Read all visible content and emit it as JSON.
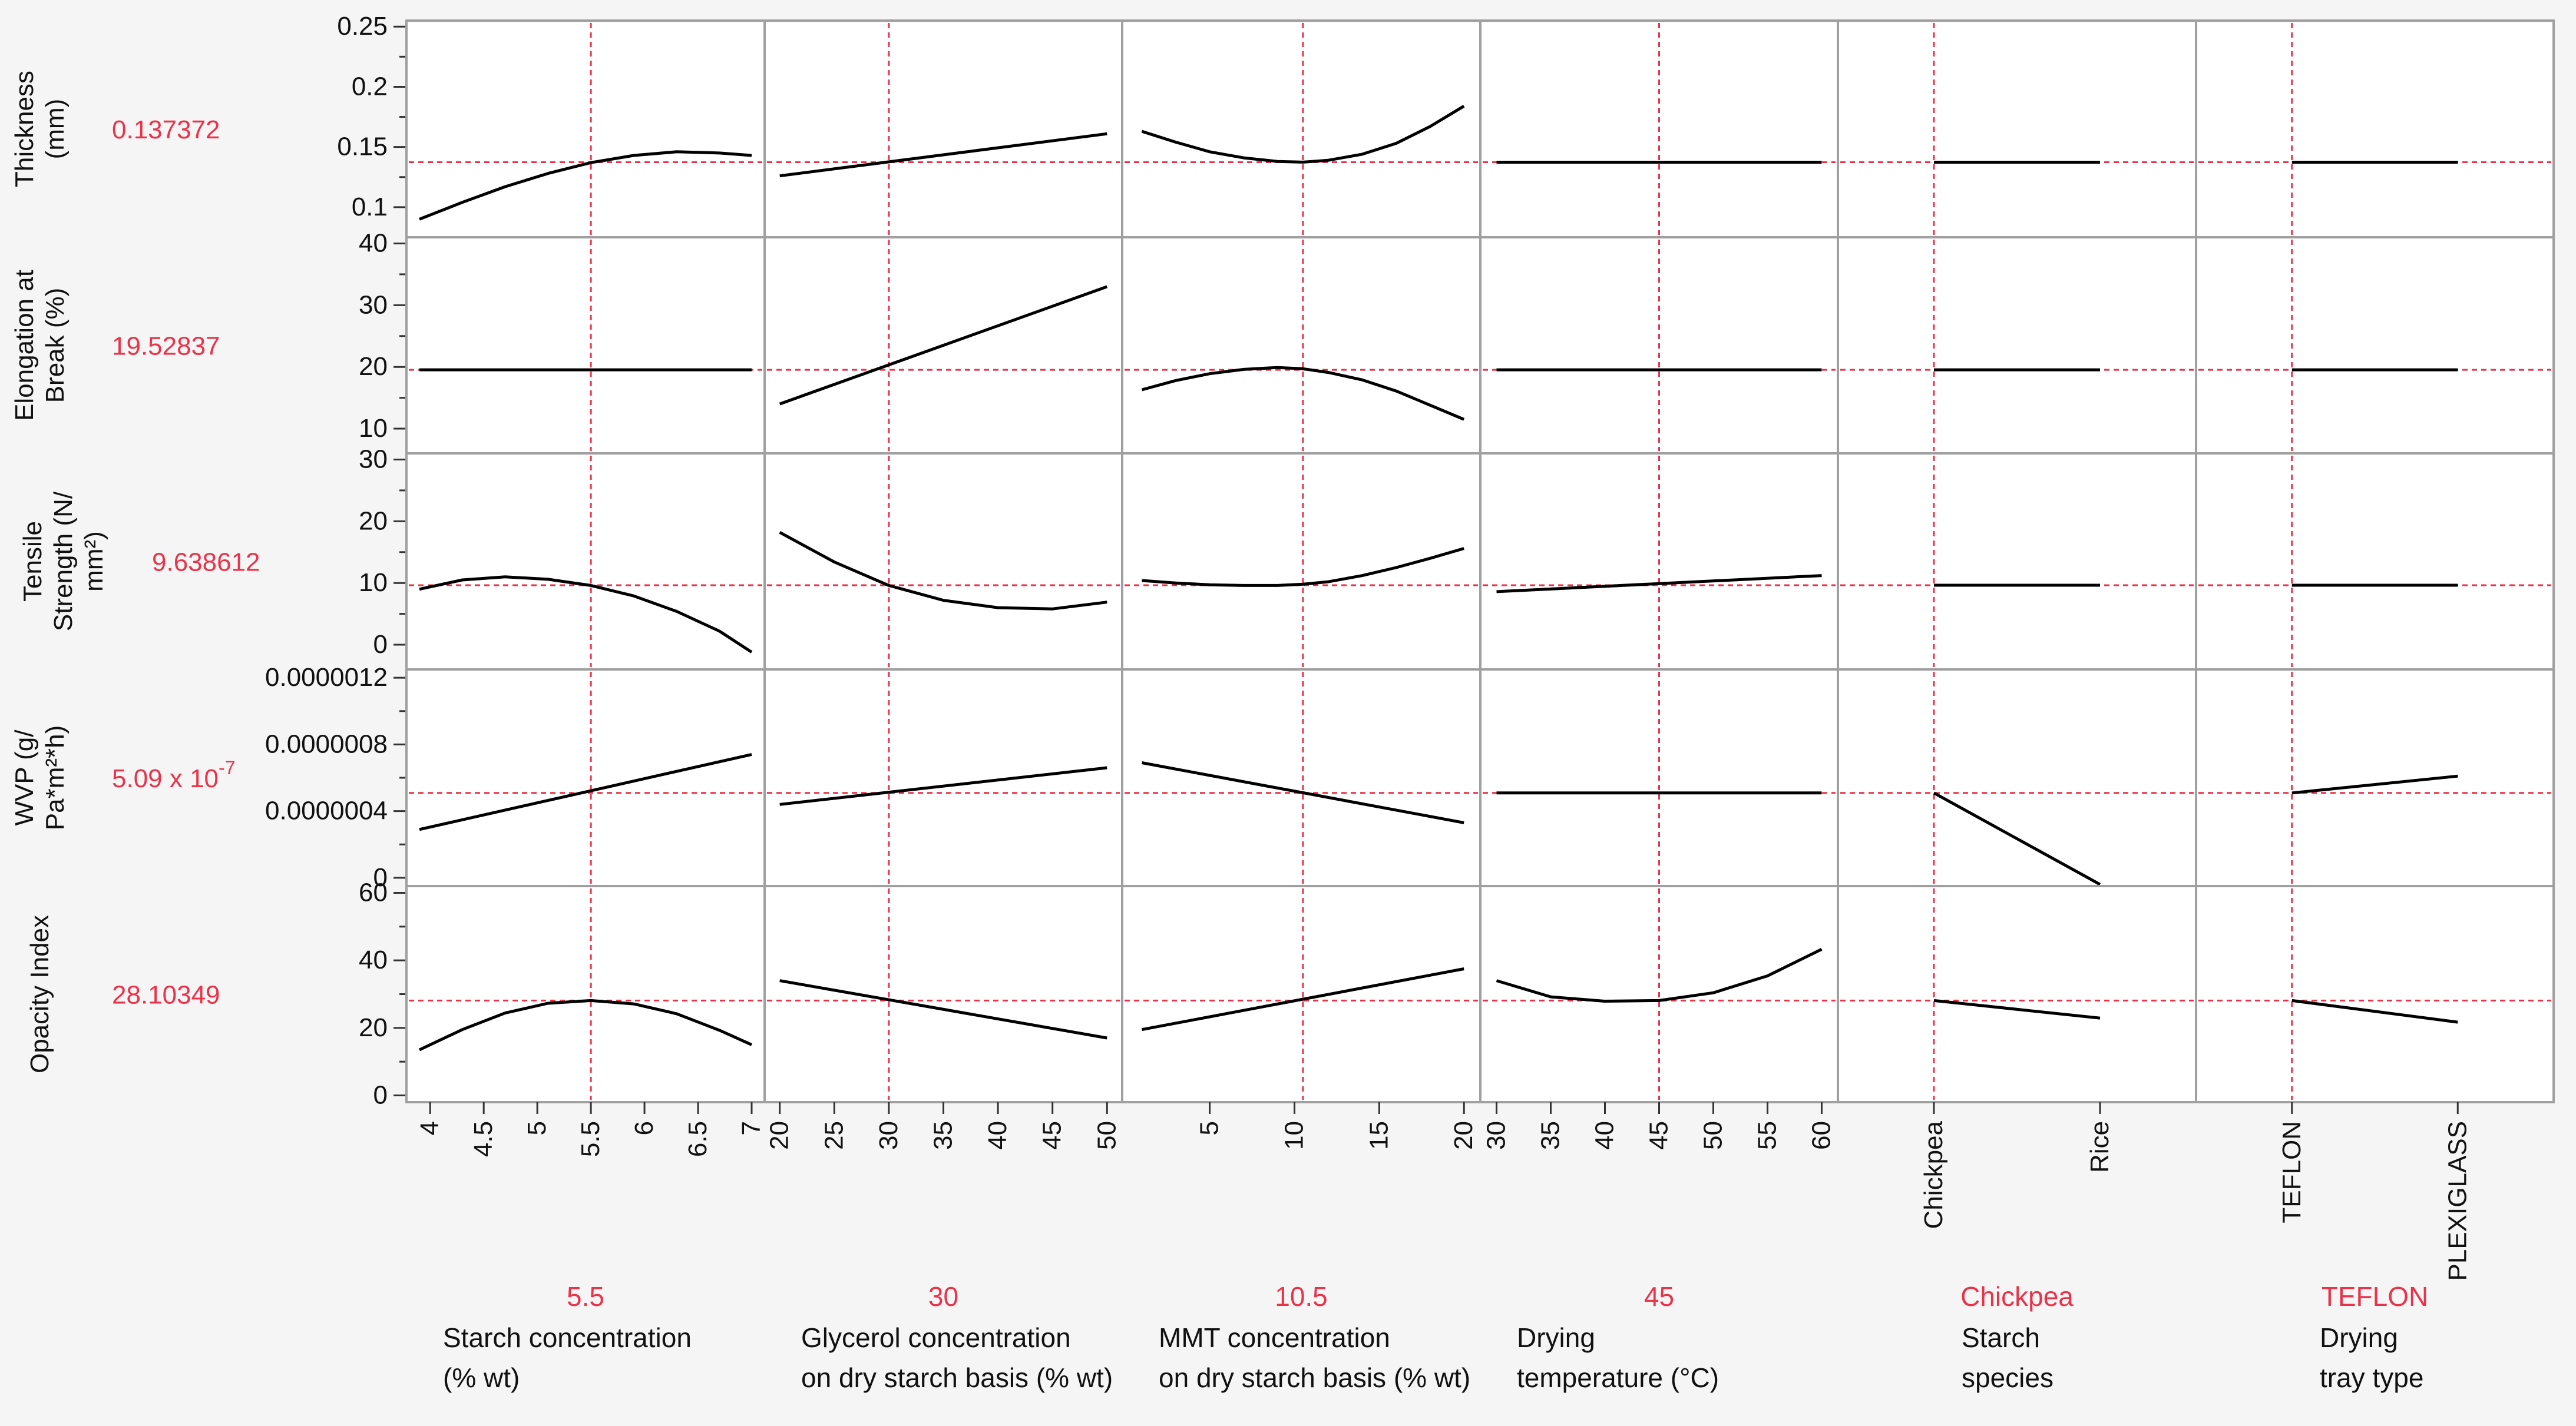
{
  "colors": {
    "current_value": "#e8334a",
    "crosshair": "#e8334a",
    "curve": "#000000",
    "frame": "#a0a0a0",
    "panel_bg": "#ffffff",
    "label_bg": "#f5f5f5"
  },
  "chart_data": {
    "type": "line",
    "title": "",
    "responses": [
      {
        "id": "thickness",
        "label_lines": [
          "Thickness",
          "(mm)"
        ],
        "current": "0.137372",
        "ylim": [
          0.075,
          0.255
        ],
        "ticks": [
          {
            "v": 0.1,
            "t": "0.1"
          },
          {
            "v": 0.15,
            "t": "0.15"
          },
          {
            "v": 0.2,
            "t": "0.2"
          },
          {
            "v": 0.25,
            "t": "0.25"
          }
        ],
        "minor_ticks": [
          0.125,
          0.175,
          0.225
        ],
        "ref": 0.137372
      },
      {
        "id": "elongation",
        "label_lines": [
          "Elongation at",
          "Break (%)"
        ],
        "current": "19.52837",
        "ylim": [
          6,
          41
        ],
        "ticks": [
          {
            "v": 10,
            "t": "10"
          },
          {
            "v": 20,
            "t": "20"
          },
          {
            "v": 30,
            "t": "30"
          },
          {
            "v": 40,
            "t": "40"
          }
        ],
        "minor_ticks": [
          15,
          25,
          35
        ],
        "ref": 19.52837
      },
      {
        "id": "tensile",
        "label_lines": [
          "Tensile",
          "Strength (N/",
          "mm²)"
        ],
        "current": "9.638612",
        "ylim": [
          -4,
          31
        ],
        "ticks": [
          {
            "v": 0,
            "t": "0"
          },
          {
            "v": 10,
            "t": "10"
          },
          {
            "v": 20,
            "t": "20"
          },
          {
            "v": 30,
            "t": "30"
          }
        ],
        "minor_ticks": [
          5,
          15,
          25
        ],
        "ref": 9.638612
      },
      {
        "id": "wvp",
        "label_lines": [
          "WVP (g/",
          "Pa*m²*h)"
        ],
        "current": "5.09 x 10",
        "current_sup": "-7",
        "ylim": [
          -5e-08,
          1.25e-06
        ],
        "ticks": [
          {
            "v": 0,
            "t": "0"
          },
          {
            "v": 4e-07,
            "t": "0.0000004"
          },
          {
            "v": 8e-07,
            "t": "0.0000008"
          },
          {
            "v": 1.2e-06,
            "t": "0.0000012"
          }
        ],
        "minor_ticks": [
          2e-07,
          6e-07,
          1e-06
        ],
        "ref": 5.09e-07
      },
      {
        "id": "opacity",
        "label_lines": [
          "Opacity Index"
        ],
        "current": "28.10349",
        "ylim": [
          -2,
          62
        ],
        "ticks": [
          {
            "v": 0,
            "t": "0"
          },
          {
            "v": 20,
            "t": "20"
          },
          {
            "v": 40,
            "t": "40"
          },
          {
            "v": 60,
            "t": "60"
          }
        ],
        "minor_ticks": [
          10,
          30,
          50
        ],
        "ref": 28.10349
      }
    ],
    "factors": [
      {
        "id": "starch_conc",
        "kind": "continuous",
        "xlim": [
          3.9,
          7.0
        ],
        "current_x": 5.5,
        "ticks": [
          {
            "v": 4,
            "t": "4"
          },
          {
            "v": 4.5,
            "t": "4.5"
          },
          {
            "v": 5,
            "t": "5"
          },
          {
            "v": 5.5,
            "t": "5.5"
          },
          {
            "v": 6,
            "t": "6"
          },
          {
            "v": 6.5,
            "t": "6.5"
          },
          {
            "v": 7,
            "t": "7"
          }
        ],
        "current": "5.5",
        "label_lines": [
          "Starch  concentration",
          "(% wt)"
        ]
      },
      {
        "id": "glycerol_conc",
        "kind": "continuous",
        "xlim": [
          19.8,
          50.2
        ],
        "current_x": 30,
        "ticks": [
          {
            "v": 20,
            "t": "20"
          },
          {
            "v": 25,
            "t": "25"
          },
          {
            "v": 30,
            "t": "30"
          },
          {
            "v": 35,
            "t": "35"
          },
          {
            "v": 40,
            "t": "40"
          },
          {
            "v": 45,
            "t": "45"
          },
          {
            "v": 50,
            "t": "50"
          }
        ],
        "current": "30",
        "label_lines": [
          "Glycerol  concentration",
          "on dry starch  basis (% wt)"
        ]
      },
      {
        "id": "mmt_conc",
        "kind": "continuous",
        "xlim": [
          0.6,
          20.2
        ],
        "current_x": 10.5,
        "ticks": [
          {
            "v": 5,
            "t": "5"
          },
          {
            "v": 10,
            "t": "10"
          },
          {
            "v": 15,
            "t": "15"
          },
          {
            "v": 20,
            "t": "20"
          }
        ],
        "current": "10.5",
        "label_lines": [
          "MMT  concentration",
          "on dry starch  basis (% wt)"
        ]
      },
      {
        "id": "drying_temp",
        "kind": "continuous",
        "xlim": [
          29.7,
          60.3
        ],
        "current_x": 45,
        "ticks": [
          {
            "v": 30,
            "t": "30"
          },
          {
            "v": 35,
            "t": "35"
          },
          {
            "v": 40,
            "t": "40"
          },
          {
            "v": 45,
            "t": "45"
          },
          {
            "v": 50,
            "t": "50"
          },
          {
            "v": 55,
            "t": "55"
          },
          {
            "v": 60,
            "t": "60"
          }
        ],
        "current": "45",
        "label_lines": [
          "Drying",
          "temperature (°C)"
        ]
      },
      {
        "id": "starch_species",
        "kind": "categorical",
        "xlim": [
          -0.5,
          1.5
        ],
        "current_x": 0,
        "ticks": [
          {
            "v": 0,
            "t": "Chickpea"
          },
          {
            "v": 1,
            "t": "Rice"
          }
        ],
        "current": "Chickpea",
        "label_lines": [
          "Starch",
          "species"
        ]
      },
      {
        "id": "tray_type",
        "kind": "categorical",
        "xlim": [
          -0.5,
          1.5
        ],
        "current_x": 0,
        "ticks": [
          {
            "v": 0,
            "t": "TEFLON"
          },
          {
            "v": 1,
            "t": "PLEXIGLASS"
          }
        ],
        "current": "TEFLON",
        "label_lines": [
          "Drying",
          "tray type"
        ]
      }
    ],
    "curves": [
      [
        {
          "x": [
            3.9,
            4.3,
            4.7,
            5.1,
            5.5,
            5.9,
            6.3,
            6.7,
            7.0
          ],
          "y": [
            0.09,
            0.104,
            0.117,
            0.128,
            0.137,
            0.143,
            0.146,
            0.145,
            0.143
          ]
        },
        {
          "x": [
            20,
            50
          ],
          "y": [
            0.126,
            0.161
          ]
        },
        {
          "x": [
            1,
            3,
            5,
            7,
            9,
            10.5,
            12,
            14,
            16,
            18,
            20
          ],
          "y": [
            0.163,
            0.154,
            0.146,
            0.141,
            0.138,
            0.1374,
            0.139,
            0.144,
            0.153,
            0.167,
            0.184
          ]
        },
        {
          "x": [
            30,
            60
          ],
          "y": [
            0.137372,
            0.137372
          ]
        },
        {
          "x": [
            0,
            1
          ],
          "y": [
            0.137372,
            0.137372
          ]
        },
        {
          "x": [
            0,
            1
          ],
          "y": [
            0.137372,
            0.137372
          ]
        }
      ],
      [
        {
          "x": [
            3.9,
            7.0
          ],
          "y": [
            19.52837,
            19.52837
          ]
        },
        {
          "x": [
            20,
            50
          ],
          "y": [
            14,
            33
          ]
        },
        {
          "x": [
            1,
            3,
            5,
            7,
            9,
            10.5,
            12,
            14,
            16,
            18,
            20
          ],
          "y": [
            16.3,
            17.8,
            18.9,
            19.6,
            19.9,
            19.7,
            19.1,
            17.9,
            16.1,
            13.8,
            11.5
          ]
        },
        {
          "x": [
            30,
            60
          ],
          "y": [
            19.52837,
            19.52837
          ]
        },
        {
          "x": [
            0,
            1
          ],
          "y": [
            19.52837,
            19.52837
          ]
        },
        {
          "x": [
            0,
            1
          ],
          "y": [
            19.52837,
            19.52837
          ]
        }
      ],
      [
        {
          "x": [
            3.9,
            4.3,
            4.7,
            5.1,
            5.5,
            5.9,
            6.3,
            6.7,
            7.0
          ],
          "y": [
            9,
            10.5,
            11,
            10.6,
            9.6,
            7.9,
            5.4,
            2.2,
            -1.2
          ]
        },
        {
          "x": [
            20,
            25,
            30,
            35,
            40,
            45,
            50
          ],
          "y": [
            18.2,
            13.4,
            9.6,
            7.2,
            6.0,
            5.8,
            6.9
          ]
        },
        {
          "x": [
            1,
            3,
            5,
            7,
            9,
            10.5,
            12,
            14,
            16,
            18,
            20
          ],
          "y": [
            10.4,
            10.0,
            9.7,
            9.6,
            9.6,
            9.8,
            10.2,
            11.2,
            12.5,
            14.0,
            15.6
          ]
        },
        {
          "x": [
            30,
            60
          ],
          "y": [
            8.6,
            11.2
          ]
        },
        {
          "x": [
            0,
            1
          ],
          "y": [
            9.638612,
            9.638612
          ]
        },
        {
          "x": [
            0,
            1
          ],
          "y": [
            9.638612,
            9.638612
          ]
        }
      ],
      [
        {
          "x": [
            3.9,
            7.0
          ],
          "y": [
            2.9e-07,
            7.4e-07
          ]
        },
        {
          "x": [
            20,
            50
          ],
          "y": [
            4.4e-07,
            6.6e-07
          ]
        },
        {
          "x": [
            1,
            20
          ],
          "y": [
            6.9e-07,
            3.3e-07
          ]
        },
        {
          "x": [
            30,
            60
          ],
          "y": [
            5.09e-07,
            5.09e-07
          ]
        },
        {
          "x": [
            0,
            1
          ],
          "y": [
            5.09e-07,
            -4e-08
          ]
        },
        {
          "x": [
            0,
            1
          ],
          "y": [
            5.09e-07,
            6.1e-07
          ]
        }
      ],
      [
        {
          "x": [
            3.9,
            4.3,
            4.7,
            5.1,
            5.5,
            5.9,
            6.3,
            6.7,
            7.0
          ],
          "y": [
            13.5,
            19.5,
            24.4,
            27.3,
            28.1,
            27.1,
            24.2,
            19.3,
            15.0
          ]
        },
        {
          "x": [
            20,
            50
          ],
          "y": [
            34,
            17
          ]
        },
        {
          "x": [
            1,
            20
          ],
          "y": [
            19.5,
            37.5
          ]
        },
        {
          "x": [
            30,
            35,
            40,
            45,
            50,
            55,
            60
          ],
          "y": [
            34.0,
            29.2,
            27.9,
            28.1,
            30.4,
            35.4,
            43.3
          ]
        },
        {
          "x": [
            0,
            1
          ],
          "y": [
            28.1,
            22.9
          ]
        },
        {
          "x": [
            0,
            1
          ],
          "y": [
            28.1,
            21.7
          ]
        }
      ]
    ]
  }
}
